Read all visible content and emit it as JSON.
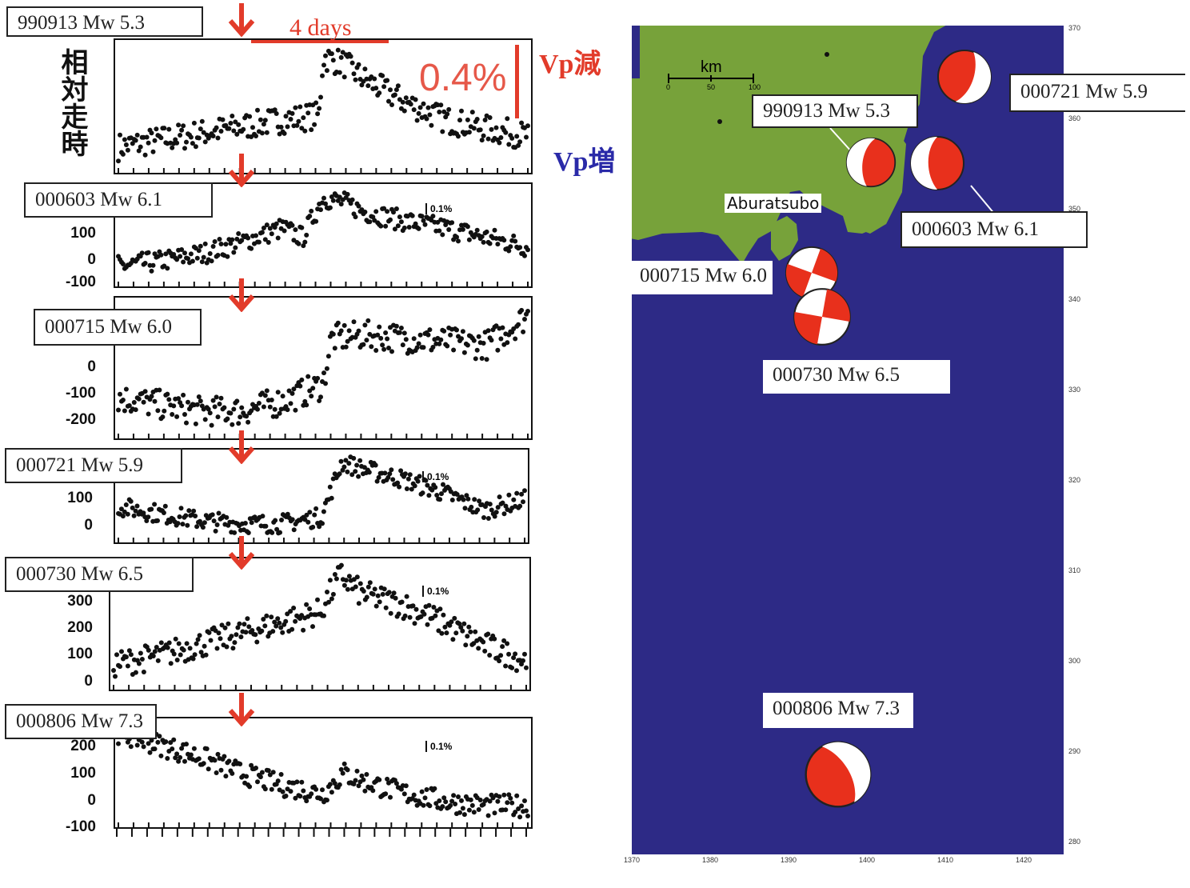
{
  "left_figure": {
    "y_axis_label": "相対走時",
    "vp_decrease_label": "Vp減",
    "vp_increase_label": "Vp増",
    "big_scale_label": "0.4%",
    "time_span_label": "4 days",
    "small_scale_label": "0.1%",
    "arrow_color": "#e23b2a"
  },
  "map": {
    "scale_unit": "km",
    "scale_ticks": [
      "0",
      "50",
      "100"
    ],
    "place_label": "Aburatsubo",
    "ocean_color": "#2d2a86",
    "land_color": "#77a23a",
    "beachball_color": "#e8301c",
    "right_axis_ticks": [
      "370",
      "360",
      "350",
      "340",
      "330",
      "320",
      "310",
      "300",
      "290",
      "280"
    ],
    "bottom_axis_ticks": [
      "1370",
      "1380",
      "1390",
      "1400",
      "1410",
      "1420"
    ],
    "event_labels": {
      "e990913": "990913 Mw 5.3",
      "e000721": "000721 Mw 5.9",
      "e000603": "000603 Mw 6.1",
      "e000715": "000715 Mw 6.0",
      "e000730": "000730 Mw 6.5",
      "e000806": "000806 Mw 7.3"
    }
  },
  "chart_data": [
    {
      "type": "scatter",
      "event": "990913 Mw 5.3",
      "yticks": [],
      "ylabel": "相対走時",
      "x": [
        0,
        10,
        20,
        30,
        40,
        49,
        50,
        55,
        60,
        70,
        80,
        90,
        100
      ],
      "y": [
        0,
        3,
        6,
        9,
        12,
        14,
        40,
        37,
        30,
        20,
        12,
        8,
        5
      ]
    },
    {
      "type": "scatter",
      "event": "000603 Mw 6.1",
      "yticks": [
        "100",
        "0",
        "-100"
      ],
      "x": [
        0,
        10,
        20,
        30,
        40,
        45,
        50,
        55,
        60,
        70,
        80,
        90,
        100
      ],
      "y": [
        -80,
        -60,
        -30,
        20,
        80,
        40,
        210,
        190,
        150,
        110,
        80,
        40,
        0
      ]
    },
    {
      "type": "scatter",
      "event": "000715 Mw 6.0",
      "yticks": [
        "0",
        "-100",
        "-200"
      ],
      "x": [
        0,
        10,
        20,
        30,
        40,
        50,
        52,
        60,
        70,
        80,
        90,
        100
      ],
      "y": [
        -170,
        -190,
        -210,
        -210,
        -180,
        -130,
        10,
        20,
        10,
        0,
        -10,
        80
      ]
    },
    {
      "type": "scatter",
      "event": "000721 Mw 5.9",
      "yticks": [
        "100",
        "0"
      ],
      "x": [
        0,
        10,
        20,
        30,
        40,
        50,
        55,
        60,
        70,
        80,
        90,
        100
      ],
      "y": [
        60,
        40,
        20,
        10,
        10,
        30,
        190,
        170,
        140,
        100,
        50,
        80
      ]
    },
    {
      "type": "scatter",
      "event": "000730 Mw 6.5",
      "yticks": [
        "300",
        "200",
        "100",
        "0"
      ],
      "x": [
        0,
        10,
        20,
        30,
        40,
        50,
        55,
        60,
        70,
        80,
        90,
        100
      ],
      "y": [
        10,
        30,
        60,
        90,
        120,
        150,
        250,
        200,
        170,
        120,
        60,
        20
      ]
    },
    {
      "type": "scatter",
      "event": "000806 Mw 7.3",
      "yticks": [
        "200",
        "100",
        "0",
        "-100"
      ],
      "x": [
        0,
        10,
        20,
        30,
        40,
        50,
        55,
        60,
        70,
        80,
        90,
        100
      ],
      "y": [
        160,
        130,
        100,
        60,
        30,
        10,
        60,
        40,
        10,
        -10,
        -20,
        -20
      ]
    }
  ]
}
